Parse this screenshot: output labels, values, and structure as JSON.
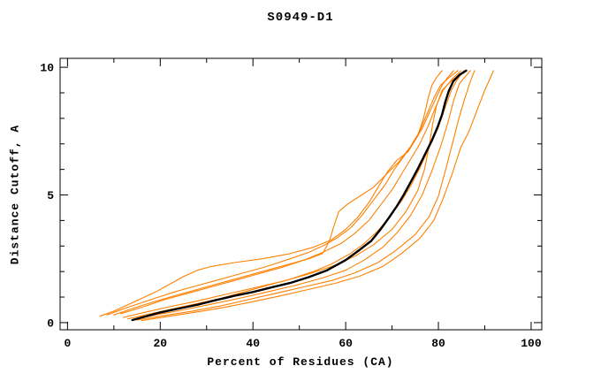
{
  "chart_data": {
    "type": "line",
    "title": "S0949-D1",
    "xlabel": "Percent of Residues (CA)",
    "ylabel": "Distance Cutoff, A",
    "xlim": [
      0,
      100
    ],
    "ylim": [
      0,
      10
    ],
    "xlim_draw": [
      -1.6,
      102.3
    ],
    "ylim_draw": [
      -0.28,
      10.35
    ],
    "grid": false,
    "legend": "none",
    "frame": "box-with-inward-ticks",
    "xticks_major": [
      0,
      20,
      40,
      60,
      80,
      100
    ],
    "xticks_minor": [
      10,
      30,
      50,
      70,
      90
    ],
    "yticks_major": [
      0,
      5,
      10
    ],
    "yticks_minor": [
      1,
      2,
      3,
      4,
      6,
      7,
      8,
      9
    ],
    "colors": {
      "model_line": "#ff8000",
      "highlight_line": "#000000"
    },
    "series": [
      {
        "name": "orange-1",
        "color": "#ff8000",
        "width": 1.1,
        "points": [
          [
            7,
            0.25
          ],
          [
            10,
            0.45
          ],
          [
            13,
            0.7
          ],
          [
            16,
            0.95
          ],
          [
            19,
            1.2
          ],
          [
            22,
            1.5
          ],
          [
            25,
            1.8
          ],
          [
            28,
            2.05
          ],
          [
            31,
            2.2
          ],
          [
            36,
            2.35
          ],
          [
            42,
            2.5
          ],
          [
            48,
            2.7
          ],
          [
            53,
            2.95
          ],
          [
            57,
            3.25
          ],
          [
            60,
            3.65
          ],
          [
            62.5,
            4.1
          ],
          [
            65,
            4.7
          ],
          [
            67,
            5.3
          ],
          [
            69,
            5.9
          ],
          [
            71,
            6.35
          ],
          [
            73.5,
            6.7
          ],
          [
            75.5,
            7.3
          ],
          [
            76.8,
            8.0
          ],
          [
            77.8,
            8.8
          ],
          [
            78.6,
            9.3
          ],
          [
            79.6,
            9.6
          ],
          [
            80.8,
            9.87
          ]
        ]
      },
      {
        "name": "orange-2",
        "color": "#ff8000",
        "width": 1.1,
        "points": [
          [
            8.5,
            0.3
          ],
          [
            13,
            0.6
          ],
          [
            18,
            0.9
          ],
          [
            23,
            1.2
          ],
          [
            28,
            1.45
          ],
          [
            33,
            1.7
          ],
          [
            38,
            1.95
          ],
          [
            43,
            2.2
          ],
          [
            48,
            2.5
          ],
          [
            52,
            2.75
          ],
          [
            55,
            3.0
          ],
          [
            58,
            3.3
          ],
          [
            61,
            3.7
          ],
          [
            63.5,
            4.2
          ],
          [
            66,
            4.8
          ],
          [
            68.5,
            5.4
          ],
          [
            70.5,
            6.0
          ],
          [
            72.5,
            6.5
          ],
          [
            74.5,
            7.0
          ],
          [
            76.5,
            7.6
          ],
          [
            78,
            8.2
          ],
          [
            79.5,
            8.8
          ],
          [
            80.8,
            9.3
          ],
          [
            82,
            9.6
          ],
          [
            83.3,
            9.87
          ]
        ]
      },
      {
        "name": "orange-3",
        "color": "#ff8000",
        "width": 1.1,
        "points": [
          [
            10,
            0.3
          ],
          [
            14,
            0.55
          ],
          [
            18,
            0.78
          ],
          [
            23,
            1.05
          ],
          [
            28,
            1.3
          ],
          [
            33,
            1.55
          ],
          [
            38,
            1.8
          ],
          [
            43,
            2.05
          ],
          [
            48,
            2.3
          ],
          [
            52,
            2.5
          ],
          [
            55,
            2.7
          ],
          [
            56.5,
            3.2
          ],
          [
            57.5,
            3.8
          ],
          [
            58.5,
            4.35
          ],
          [
            60.5,
            4.65
          ],
          [
            63,
            4.95
          ],
          [
            66,
            5.3
          ],
          [
            69,
            5.85
          ],
          [
            71.5,
            6.3
          ],
          [
            74,
            6.9
          ],
          [
            76,
            7.5
          ],
          [
            77.5,
            8.15
          ],
          [
            79,
            8.8
          ],
          [
            80.5,
            9.3
          ],
          [
            82.3,
            9.6
          ],
          [
            84.2,
            9.87
          ]
        ]
      },
      {
        "name": "orange-4",
        "color": "#ff8000",
        "width": 1.1,
        "points": [
          [
            11.5,
            0.35
          ],
          [
            16,
            0.6
          ],
          [
            21,
            0.9
          ],
          [
            26,
            1.15
          ],
          [
            31,
            1.4
          ],
          [
            36,
            1.65
          ],
          [
            41,
            1.9
          ],
          [
            46,
            2.15
          ],
          [
            51,
            2.45
          ],
          [
            55,
            2.75
          ],
          [
            59,
            3.1
          ],
          [
            62,
            3.5
          ],
          [
            65,
            4.0
          ],
          [
            67.5,
            4.6
          ],
          [
            70,
            5.2
          ],
          [
            72,
            5.8
          ],
          [
            74,
            6.4
          ],
          [
            76,
            7.0
          ],
          [
            77.8,
            7.7
          ],
          [
            79.3,
            8.4
          ],
          [
            81,
            9.1
          ],
          [
            83,
            9.55
          ],
          [
            84.9,
            9.87
          ]
        ]
      },
      {
        "name": "orange-5",
        "color": "#ff8000",
        "width": 1.1,
        "points": [
          [
            13,
            0.15
          ],
          [
            18,
            0.35
          ],
          [
            23,
            0.55
          ],
          [
            28,
            0.75
          ],
          [
            33,
            0.95
          ],
          [
            38,
            1.2
          ],
          [
            43,
            1.45
          ],
          [
            48,
            1.7
          ],
          [
            53,
            2.0
          ],
          [
            57,
            2.3
          ],
          [
            61,
            2.7
          ],
          [
            64,
            3.1
          ],
          [
            67,
            3.6
          ],
          [
            69.5,
            4.15
          ],
          [
            72,
            4.75
          ],
          [
            74,
            5.35
          ],
          [
            76,
            6.05
          ],
          [
            78,
            6.85
          ],
          [
            80,
            7.65
          ],
          [
            81.5,
            8.45
          ],
          [
            82.8,
            9.1
          ],
          [
            84,
            9.5
          ],
          [
            85.5,
            9.87
          ]
        ]
      },
      {
        "name": "orange-6",
        "color": "#ff8000",
        "width": 1.1,
        "points": [
          [
            12,
            0.2
          ],
          [
            17,
            0.42
          ],
          [
            22,
            0.62
          ],
          [
            28,
            0.85
          ],
          [
            34,
            1.1
          ],
          [
            40,
            1.35
          ],
          [
            46,
            1.6
          ],
          [
            52,
            1.9
          ],
          [
            57,
            2.2
          ],
          [
            62,
            2.6
          ],
          [
            66,
            3.05
          ],
          [
            70,
            3.65
          ],
          [
            73,
            4.35
          ],
          [
            75.5,
            5.15
          ],
          [
            77,
            6.0
          ],
          [
            78,
            6.9
          ],
          [
            78.8,
            7.8
          ],
          [
            79.6,
            8.5
          ],
          [
            80.8,
            9.1
          ],
          [
            83,
            9.5
          ],
          [
            86,
            9.87
          ]
        ]
      },
      {
        "name": "orange-7",
        "color": "#ff8000",
        "width": 1.1,
        "points": [
          [
            14,
            0.1
          ],
          [
            19,
            0.3
          ],
          [
            25,
            0.5
          ],
          [
            31,
            0.72
          ],
          [
            37,
            0.95
          ],
          [
            43,
            1.2
          ],
          [
            49,
            1.45
          ],
          [
            55,
            1.75
          ],
          [
            60,
            2.05
          ],
          [
            64,
            2.45
          ],
          [
            68,
            2.95
          ],
          [
            71,
            3.5
          ],
          [
            74,
            4.2
          ],
          [
            76.5,
            5.0
          ],
          [
            78.5,
            5.9
          ],
          [
            80.5,
            6.9
          ],
          [
            82,
            7.8
          ],
          [
            83.3,
            8.7
          ],
          [
            84.5,
            9.35
          ],
          [
            86.9,
            9.87
          ]
        ]
      },
      {
        "name": "orange-8",
        "color": "#ff8000",
        "width": 1.1,
        "points": [
          [
            15,
            0.1
          ],
          [
            21,
            0.28
          ],
          [
            27,
            0.45
          ],
          [
            33,
            0.65
          ],
          [
            39,
            0.9
          ],
          [
            45,
            1.15
          ],
          [
            51,
            1.4
          ],
          [
            57,
            1.65
          ],
          [
            62,
            1.95
          ],
          [
            67,
            2.35
          ],
          [
            71,
            2.85
          ],
          [
            75,
            3.45
          ],
          [
            78,
            4.15
          ],
          [
            80,
            4.95
          ],
          [
            81.5,
            5.95
          ],
          [
            83,
            7.0
          ],
          [
            84.5,
            8.05
          ],
          [
            85.8,
            8.85
          ],
          [
            86.8,
            9.4
          ],
          [
            87.8,
            9.87
          ]
        ]
      },
      {
        "name": "orange-9",
        "color": "#ff8000",
        "width": 1.1,
        "points": [
          [
            16,
            0.08
          ],
          [
            22,
            0.25
          ],
          [
            28,
            0.42
          ],
          [
            34,
            0.6
          ],
          [
            40,
            0.82
          ],
          [
            46,
            1.05
          ],
          [
            52,
            1.3
          ],
          [
            58,
            1.55
          ],
          [
            63,
            1.82
          ],
          [
            68,
            2.2
          ],
          [
            72,
            2.7
          ],
          [
            76,
            3.3
          ],
          [
            79,
            4.0
          ],
          [
            81,
            4.85
          ],
          [
            83,
            5.85
          ],
          [
            84.8,
            6.85
          ],
          [
            86.5,
            7.45
          ],
          [
            88.3,
            8.3
          ],
          [
            90,
            9.1
          ],
          [
            91,
            9.5
          ],
          [
            91.9,
            9.87
          ]
        ]
      },
      {
        "name": "black-bold",
        "color": "#000000",
        "width": 2.4,
        "points": [
          [
            14,
            0.1
          ],
          [
            17,
            0.25
          ],
          [
            20,
            0.4
          ],
          [
            24,
            0.55
          ],
          [
            28,
            0.7
          ],
          [
            32,
            0.88
          ],
          [
            36,
            1.05
          ],
          [
            40,
            1.2
          ],
          [
            44,
            1.38
          ],
          [
            48,
            1.55
          ],
          [
            52,
            1.78
          ],
          [
            56,
            2.05
          ],
          [
            60,
            2.45
          ],
          [
            63,
            2.85
          ],
          [
            65.5,
            3.2
          ],
          [
            67.5,
            3.65
          ],
          [
            69.5,
            4.15
          ],
          [
            71,
            4.55
          ],
          [
            72.5,
            5.0
          ],
          [
            74,
            5.5
          ],
          [
            75.5,
            6.0
          ],
          [
            77,
            6.55
          ],
          [
            78.5,
            7.1
          ],
          [
            79.8,
            7.65
          ],
          [
            80.8,
            8.15
          ],
          [
            81.5,
            8.65
          ],
          [
            82.2,
            9.05
          ],
          [
            83.2,
            9.45
          ],
          [
            84.5,
            9.7
          ],
          [
            86,
            9.87
          ]
        ]
      }
    ]
  }
}
